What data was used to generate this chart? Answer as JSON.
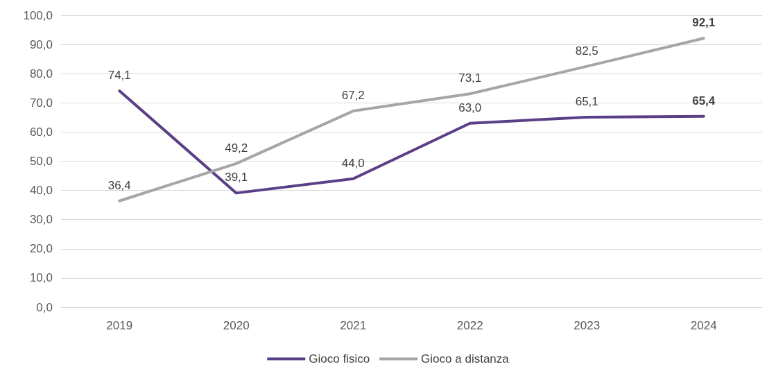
{
  "chart_data": {
    "type": "line",
    "categories": [
      "2019",
      "2020",
      "2021",
      "2022",
      "2023",
      "2024"
    ],
    "series": [
      {
        "name": "Gioco fisico",
        "color": "#5b3f86",
        "values": [
          74.1,
          39.1,
          44.0,
          63.0,
          65.1,
          65.4
        ],
        "value_labels": [
          "74,1",
          "39,1",
          "44,0",
          "63,0",
          "65,1",
          "65,4"
        ]
      },
      {
        "name": "Gioco a distanza",
        "color": "#a6a6a6",
        "values": [
          36.4,
          49.2,
          67.2,
          73.1,
          82.5,
          92.1
        ],
        "value_labels": [
          "36,4",
          "49,2",
          "67,2",
          "73,1",
          "82,5",
          "92,1"
        ]
      }
    ],
    "ylim": [
      0,
      100
    ],
    "yticks": [
      {
        "value": 0,
        "label": "0,0"
      },
      {
        "value": 10,
        "label": "10,0"
      },
      {
        "value": 20,
        "label": "20,0"
      },
      {
        "value": 30,
        "label": "30,0"
      },
      {
        "value": 40,
        "label": "40,0"
      },
      {
        "value": 50,
        "label": "50,0"
      },
      {
        "value": 60,
        "label": "60,0"
      },
      {
        "value": 70,
        "label": "70,0"
      },
      {
        "value": 80,
        "label": "80,0"
      },
      {
        "value": 90,
        "label": "90,0"
      },
      {
        "value": 100,
        "label": "100,0"
      }
    ],
    "grid": "y",
    "legend": "bottom",
    "marker": "none",
    "line_style": "solid"
  }
}
